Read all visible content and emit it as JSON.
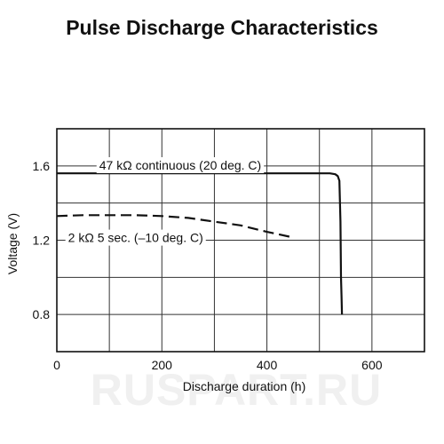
{
  "page": {
    "title": "Pulse Discharge Characteristics",
    "watermark": "RUSPART.RU"
  },
  "chart_data": {
    "type": "line",
    "title": "Pulse Discharge Characteristics",
    "xlabel": "Discharge duration (h)",
    "ylabel": "Voltage (V)",
    "xlim": [
      0,
      700
    ],
    "ylim": [
      0.6,
      1.8
    ],
    "x_ticks": [
      0,
      200,
      400,
      600
    ],
    "x_tick_labels": [
      "0",
      "200",
      "400",
      "600"
    ],
    "y_ticks": [
      0.8,
      1.2,
      1.6
    ],
    "y_tick_labels": [
      "0.8",
      "1.2",
      "1.6"
    ],
    "grid": true,
    "legend": "none",
    "series": [
      {
        "name": "47 kΩ continuous (20 deg. C)",
        "style": "solid",
        "x": [
          0,
          100,
          200,
          300,
          400,
          500,
          520,
          530,
          535,
          538,
          540,
          541,
          542,
          543
        ],
        "y": [
          1.56,
          1.56,
          1.56,
          1.56,
          1.56,
          1.56,
          1.56,
          1.555,
          1.545,
          1.52,
          1.3,
          1.0,
          0.9,
          0.8
        ]
      },
      {
        "name": "2 kΩ 5 sec. (–10 deg. C)",
        "style": "dashed",
        "x": [
          0,
          50,
          100,
          150,
          200,
          250,
          300,
          350,
          400,
          450
        ],
        "y": [
          1.33,
          1.335,
          1.335,
          1.335,
          1.33,
          1.32,
          1.3,
          1.28,
          1.245,
          1.215
        ]
      }
    ],
    "annotations": [
      {
        "text": "47 kΩ continuous (20 deg. C)",
        "x": 235,
        "y": 1.58
      },
      {
        "text": "2 kΩ 5 sec. (–10 deg. C)",
        "x": 150,
        "y": 1.19
      }
    ]
  }
}
